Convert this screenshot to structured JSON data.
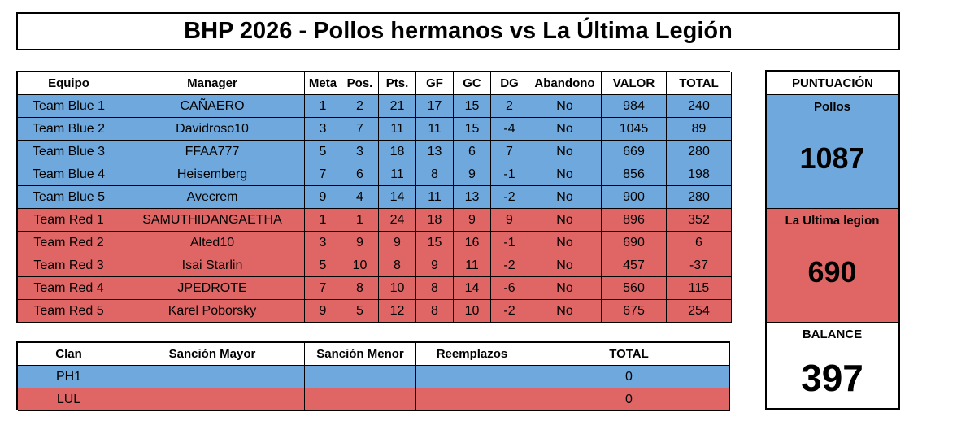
{
  "title": "BHP 2026 - Pollos hermanos vs La Última Legión",
  "main_table": {
    "headers": [
      "Equipo",
      "Manager",
      "Meta",
      "Pos.",
      "Pts.",
      "GF",
      "GC",
      "DG",
      "Abandono",
      "VALOR",
      "TOTAL"
    ],
    "groups": [
      {
        "color": "#6fa8dc",
        "rows": [
          [
            "Team Blue 1",
            "CAÑAERO",
            1,
            2,
            21,
            17,
            15,
            2,
            "No",
            984,
            240
          ],
          [
            "Team Blue 2",
            "Davidroso10",
            3,
            7,
            11,
            11,
            15,
            -4,
            "No",
            1045,
            89
          ],
          [
            "Team Blue 3",
            "FFAA777",
            5,
            3,
            18,
            13,
            6,
            7,
            "No",
            669,
            280
          ],
          [
            "Team Blue 4",
            "Heisemberg",
            7,
            6,
            11,
            8,
            9,
            -1,
            "No",
            856,
            198
          ],
          [
            "Team Blue 5",
            "Avecrem",
            9,
            4,
            14,
            11,
            13,
            -2,
            "No",
            900,
            280
          ]
        ]
      },
      {
        "color": "#e06666",
        "rows": [
          [
            "Team Red 1",
            "SAMUTHIDANGAETHA",
            1,
            1,
            24,
            18,
            9,
            9,
            "No",
            896,
            352
          ],
          [
            "Team Red 2",
            "Alted10",
            3,
            9,
            9,
            15,
            16,
            -1,
            "No",
            690,
            6
          ],
          [
            "Team Red 3",
            "Isai Starlin",
            5,
            10,
            8,
            9,
            11,
            -2,
            "No",
            457,
            -37
          ],
          [
            "Team Red 4",
            "JPEDROTE",
            7,
            8,
            10,
            8,
            14,
            -6,
            "No",
            560,
            115
          ],
          [
            "Team Red 5",
            "Karel Poborsky",
            9,
            5,
            12,
            8,
            10,
            -2,
            "No",
            675,
            254
          ]
        ]
      }
    ]
  },
  "clan_table": {
    "headers": [
      "Clan",
      "Sanción Mayor",
      "Sanción Menor",
      "Reemplazos",
      "TOTAL"
    ],
    "rows": [
      {
        "clan": "PH1",
        "total": 0,
        "color": "#6fa8dc"
      },
      {
        "clan": "LUL",
        "total": 0,
        "color": "#e06666"
      }
    ]
  },
  "score": {
    "title": "PUNTUACIÓN",
    "teams": [
      {
        "name": "Pollos",
        "score": 1087,
        "color": "#6fa8dc"
      },
      {
        "name": "La Ultima legion",
        "score": 690,
        "color": "#e06666"
      }
    ],
    "balance": {
      "label": "BALANCE",
      "value": 397
    }
  }
}
